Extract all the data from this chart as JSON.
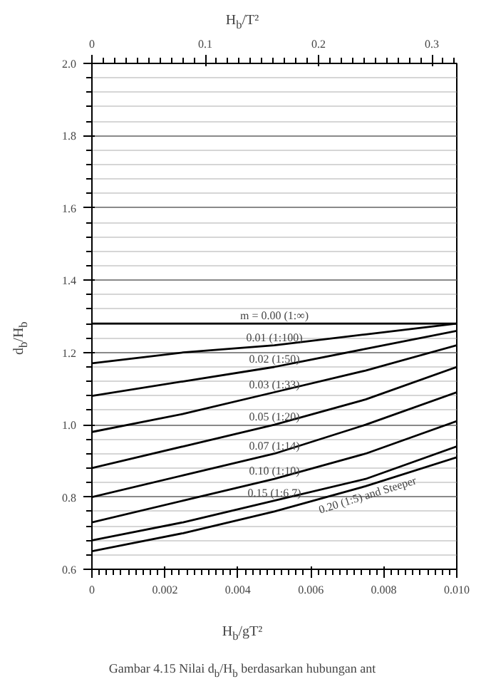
{
  "chart_data": {
    "type": "line",
    "ylabel": "d$_{b}$/H$_{b}$",
    "x2label": "H$_{b}$/T²",
    "xlabel": "H$_{b}$/gT²",
    "annotations": [
      "Gambar 4.15 Nilai d$_{b}$/H$_{b}$ berdasarkan hubungan ant"
    ],
    "x": [
      0,
      0.0025,
      0.005,
      0.0075,
      0.01
    ],
    "series": [
      {
        "name": "m = 0.00 (1:∞)",
        "color": "#000000",
        "values": [
          1.28,
          1.28,
          1.28,
          1.28,
          1.28
        ]
      },
      {
        "name": "0.01 (1:100)",
        "color": "#000000",
        "values": [
          1.17,
          1.2,
          1.22,
          1.25,
          1.28
        ]
      },
      {
        "name": "0.02 (1:50)",
        "color": "#000000",
        "values": [
          1.08,
          1.12,
          1.16,
          1.21,
          1.26
        ]
      },
      {
        "name": "0.03 (1:33)",
        "color": "#000000",
        "values": [
          0.98,
          1.03,
          1.09,
          1.15,
          1.22
        ]
      },
      {
        "name": "0.05 (1:20)",
        "color": "#000000",
        "values": [
          0.88,
          0.94,
          1.0,
          1.07,
          1.16
        ]
      },
      {
        "name": "0.07 (1:14)",
        "color": "#000000",
        "values": [
          0.8,
          0.86,
          0.92,
          1.0,
          1.09
        ]
      },
      {
        "name": "0.10 (1:10)",
        "color": "#000000",
        "values": [
          0.73,
          0.79,
          0.85,
          0.92,
          1.01
        ]
      },
      {
        "name": "0.15 (1:6.7)",
        "color": "#000000",
        "values": [
          0.68,
          0.73,
          0.79,
          0.85,
          0.94
        ]
      },
      {
        "name": "0.20 (1:5) and Steeper",
        "color": "#000000",
        "values": [
          0.65,
          0.7,
          0.76,
          0.83,
          0.91
        ]
      }
    ],
    "xlim": [
      0,
      0.01
    ],
    "xticks": [
      0,
      0.002,
      0.004,
      0.006,
      0.008,
      {
        "value": 0.01,
        "label": "0.010"
      }
    ],
    "x2lim": [
      0,
      0.322
    ],
    "x2ticks": [
      0,
      0.1,
      0.2,
      0.3
    ],
    "ylim": [
      0.6,
      2.0
    ],
    "yticks": [
      {
        "value": 0.6,
        "label": "0.6"
      },
      {
        "value": 0.8,
        "label": "0.8"
      },
      {
        "value": 1.0,
        "label": "1.0"
      },
      {
        "value": 1.2,
        "label": "1.2"
      },
      {
        "value": 1.4,
        "label": "1.4"
      },
      {
        "value": 1.6,
        "label": "1.6"
      },
      {
        "value": 1.8,
        "label": "1.8"
      },
      {
        "value": 2.0,
        "label": "2.0"
      }
    ],
    "grid": true,
    "legend": false,
    "marker": "none",
    "line_style": "solid"
  }
}
